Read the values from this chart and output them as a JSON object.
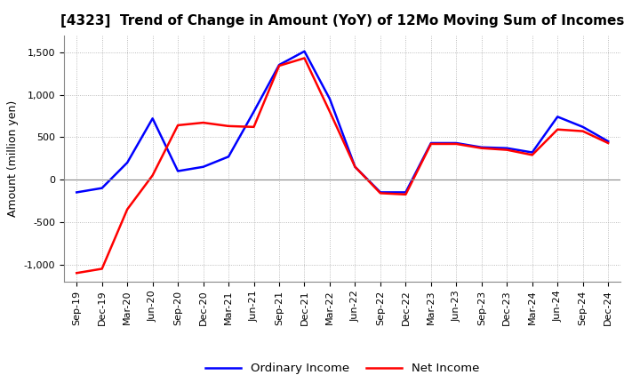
{
  "title": "[4323]  Trend of Change in Amount (YoY) of 12Mo Moving Sum of Incomes",
  "ylabel": "Amount (million yen)",
  "x_labels": [
    "Sep-19",
    "Dec-19",
    "Mar-20",
    "Jun-20",
    "Sep-20",
    "Dec-20",
    "Mar-21",
    "Jun-21",
    "Sep-21",
    "Dec-21",
    "Mar-22",
    "Jun-22",
    "Sep-22",
    "Dec-22",
    "Mar-23",
    "Jun-23",
    "Sep-23",
    "Dec-23",
    "Mar-24",
    "Jun-24",
    "Sep-24",
    "Dec-24"
  ],
  "ordinary_income": [
    -150,
    -100,
    200,
    720,
    100,
    150,
    270,
    800,
    1350,
    1510,
    950,
    150,
    -150,
    -150,
    430,
    430,
    380,
    370,
    320,
    740,
    620,
    450
  ],
  "net_income": [
    -1100,
    -1050,
    -350,
    50,
    640,
    670,
    630,
    620,
    1340,
    1430,
    800,
    150,
    -160,
    -175,
    420,
    420,
    370,
    350,
    290,
    590,
    570,
    430
  ],
  "ordinary_color": "#0000FF",
  "net_color": "#FF0000",
  "ylim": [
    -1200,
    1700
  ],
  "yticks": [
    -1000,
    -500,
    0,
    500,
    1000,
    1500
  ],
  "background_color": "#FFFFFF",
  "grid_color": "#AAAAAA",
  "title_fontsize": 11,
  "label_fontsize": 9,
  "tick_fontsize": 8,
  "legend_labels": [
    "Ordinary Income",
    "Net Income"
  ]
}
